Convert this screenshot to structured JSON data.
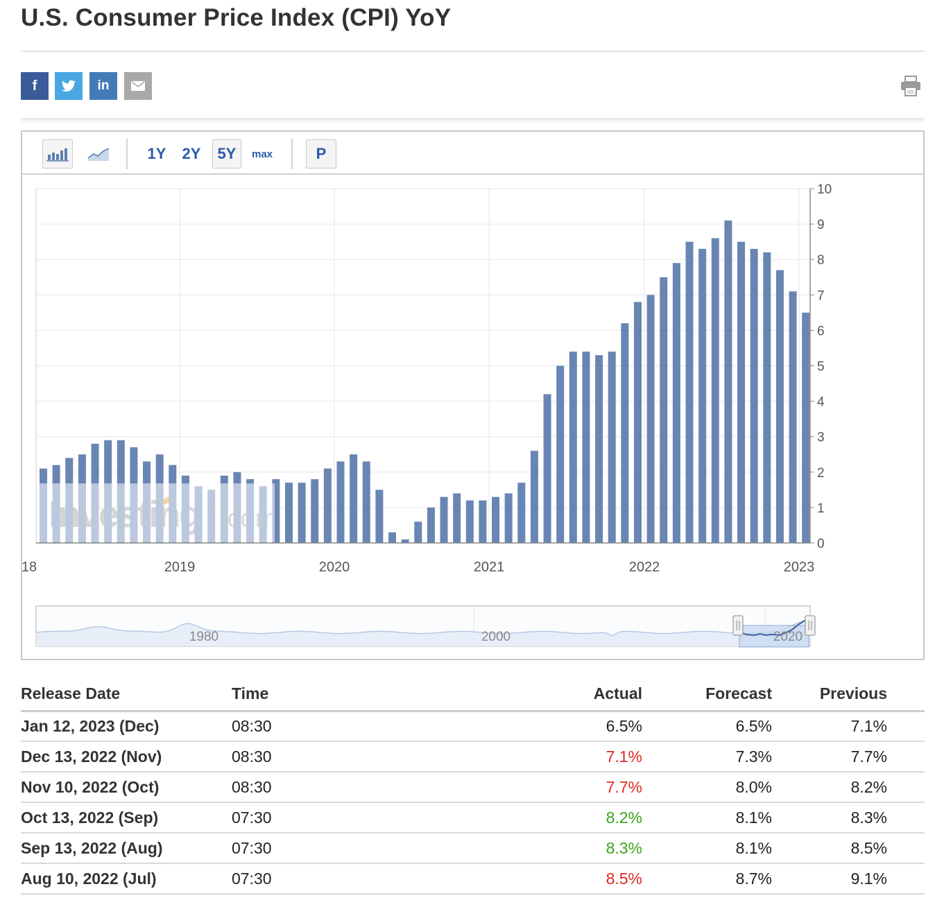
{
  "page": {
    "title": "U.S. Consumer Price Index (CPI) YoY"
  },
  "share": {
    "facebook": "f",
    "twitter": "twitter-bird-icon",
    "linkedin": "in",
    "email": "envelope-icon",
    "print": "printer-icon"
  },
  "toolbar": {
    "bar_icon": "bar-chart-icon",
    "line_icon": "line-chart-icon",
    "ranges": [
      "1Y",
      "2Y",
      "5Y",
      "max"
    ],
    "active_range": "5Y",
    "p_label": "P"
  },
  "watermark": "Investing.com",
  "chart_data": {
    "type": "bar",
    "title": "",
    "x_tick_labels": [
      "18",
      "2019",
      "2020",
      "2021",
      "2022",
      "2023"
    ],
    "y_tick_labels": [
      "0",
      "1",
      "2",
      "3",
      "4",
      "5",
      "6",
      "7",
      "8",
      "9",
      "10"
    ],
    "ylim": [
      0,
      10
    ],
    "grid": true,
    "y_axis_side": "right",
    "series": [
      {
        "values": [
          2.1,
          2.2,
          2.4,
          2.5,
          2.8,
          2.9,
          2.9,
          2.7,
          2.3,
          2.5,
          2.2,
          1.9,
          1.6,
          1.5,
          1.9,
          2.0,
          1.8,
          1.6,
          1.8,
          1.7,
          1.7,
          1.8,
          2.1,
          2.3,
          2.5,
          2.3,
          1.5,
          0.3,
          0.1,
          0.6,
          1.0,
          1.3,
          1.4,
          1.2,
          1.2,
          1.3,
          1.4,
          1.7,
          2.6,
          4.2,
          5.0,
          5.4,
          5.4,
          5.3,
          5.4,
          6.2,
          6.8,
          7.0,
          7.5,
          7.9,
          8.5,
          8.3,
          8.6,
          9.1,
          8.5,
          8.3,
          8.2,
          7.7,
          7.1,
          6.5
        ]
      }
    ],
    "navigator_labels": [
      "1980",
      "2000",
      "2020"
    ]
  },
  "table": {
    "headers": {
      "release_date": "Release Date",
      "time": "Time",
      "actual": "Actual",
      "forecast": "Forecast",
      "previous": "Previous"
    },
    "rows": [
      {
        "date": "Jan 12, 2023 (Dec)",
        "time": "08:30",
        "actual": "6.5%",
        "actual_color": "#222222",
        "forecast": "6.5%",
        "previous": "7.1%"
      },
      {
        "date": "Dec 13, 2022 (Nov)",
        "time": "08:30",
        "actual": "7.1%",
        "actual_color": "#e0291f",
        "forecast": "7.3%",
        "previous": "7.7%"
      },
      {
        "date": "Nov 10, 2022 (Oct)",
        "time": "08:30",
        "actual": "7.7%",
        "actual_color": "#e0291f",
        "forecast": "8.0%",
        "previous": "8.2%"
      },
      {
        "date": "Oct 13, 2022 (Sep)",
        "time": "07:30",
        "actual": "8.2%",
        "actual_color": "#3aa61c",
        "forecast": "8.1%",
        "previous": "8.3%"
      },
      {
        "date": "Sep 13, 2022 (Aug)",
        "time": "07:30",
        "actual": "8.3%",
        "actual_color": "#3aa61c",
        "forecast": "8.1%",
        "previous": "8.5%"
      },
      {
        "date": "Aug 10, 2022 (Jul)",
        "time": "07:30",
        "actual": "8.5%",
        "actual_color": "#e0291f",
        "forecast": "8.7%",
        "previous": "9.1%"
      }
    ]
  }
}
